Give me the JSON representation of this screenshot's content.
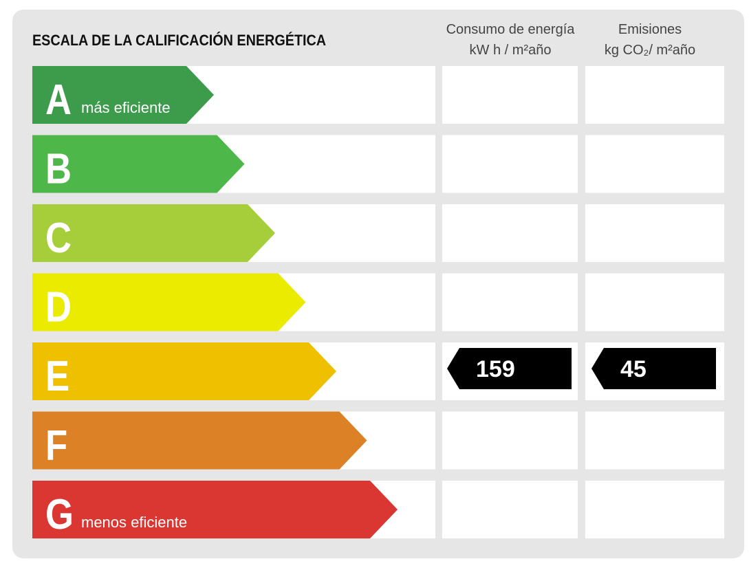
{
  "title": "ESCALA DE LA CALIFICACIÓN ENERGÉTICA",
  "columns": [
    {
      "line1": "Consumo de energía",
      "line2": "kW h / m²año"
    },
    {
      "line1": "Emisiones",
      "line2": "kg CO₂/ m²año"
    }
  ],
  "ratings": [
    {
      "letter": "A",
      "note": "más eficiente",
      "color": "#3d9b4c"
    },
    {
      "letter": "B",
      "color": "#4db849"
    },
    {
      "letter": "C",
      "color": "#a6cd3a"
    },
    {
      "letter": "D",
      "color": "#ebeb00"
    },
    {
      "letter": "E",
      "color": "#eec000",
      "consumption": 159,
      "emissions": 45
    },
    {
      "letter": "F",
      "color": "#dc8126"
    },
    {
      "letter": "G",
      "note": "menos eficiente",
      "color": "#da3733"
    }
  ]
}
